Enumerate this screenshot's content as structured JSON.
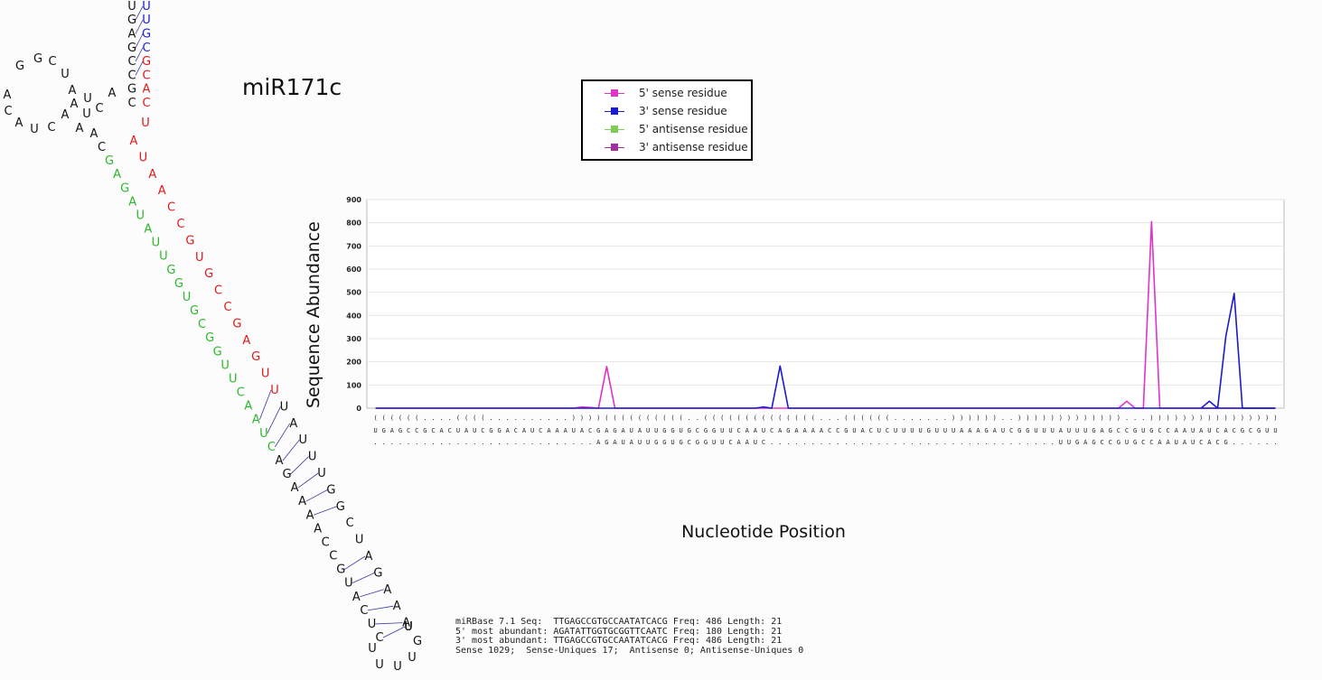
{
  "title": "miR171c",
  "legend": [
    {
      "label": "5' sense residue",
      "color": "#e033c8"
    },
    {
      "label": "3' sense residue",
      "color": "#1a1ad0"
    },
    {
      "label": "5' antisense residue",
      "color": "#7fcc5a"
    },
    {
      "label": "3' antisense residue",
      "color": "#a030a0"
    }
  ],
  "structure": {
    "colors": {
      "black": "#111111",
      "blue": "#1a1ad0",
      "red": "#e01818",
      "green": "#2ab82a",
      "bond": "#3a3aa0"
    },
    "segments": [
      {
        "seq": "UGAGCCGC",
        "color": "black"
      },
      {
        "seq": "ACUAUCGGACA",
        "color": "black"
      },
      {
        "seq": "UCAAAUAC",
        "color": "black"
      },
      {
        "seq": "GAGAUAUUGGUGCGGUUCAAUC",
        "color": "green"
      },
      {
        "seq": "AGAAAACCGUACUCUUUUGUUUAAAGAUCGGUUUAU",
        "color": "black"
      },
      {
        "seq": "UUGAGCCGUGCCAAUAUCACG",
        "color": "red"
      },
      {
        "seq": "CGUUUA",
        "color": "blue"
      }
    ]
  },
  "chart_data": {
    "type": "line",
    "xlabel": "Nucleotide Position",
    "ylabel": "Sequence Abundance",
    "ylim": [
      0,
      900
    ],
    "yticks": [
      0,
      100,
      200,
      300,
      400,
      500,
      600,
      700,
      800,
      900
    ],
    "grid": true,
    "n_positions": 110,
    "dot_bracket": "((((((....((((..........))))((((((((((..((((((((((((((...((((((.......))))))..)))))))))))))...))))))))))))))))))",
    "sequence": "UGAGCCGCACUAUCGGACAUCAAAUACGAGAUAUUGGUGCGGUUCAAUCAGAAAACCGUACUCUUUUGUUUAAAGAUCGGUUUAUUUGAGCCGUGCCAAUAUCACGCGUUUA",
    "mapped_reads": "...........................AGAUAUUGGUGCGGUUCAAUC...................................UUGAGCCGUGCCAAUAUCACG......",
    "series": [
      {
        "name": "5' sense residue",
        "color": "#e033c8",
        "points": [
          [
            0,
            0
          ],
          [
            24,
            0
          ],
          [
            25,
            5
          ],
          [
            26,
            3
          ],
          [
            27,
            0
          ],
          [
            28,
            180
          ],
          [
            29,
            0
          ],
          [
            90,
            0
          ],
          [
            91,
            30
          ],
          [
            92,
            0
          ],
          [
            93,
            0
          ],
          [
            94,
            805
          ],
          [
            95,
            0
          ],
          [
            109,
            0
          ]
        ]
      },
      {
        "name": "3' sense residue",
        "color": "#1a1ad0",
        "points": [
          [
            0,
            0
          ],
          [
            46,
            0
          ],
          [
            47,
            5
          ],
          [
            48,
            0
          ],
          [
            49,
            182
          ],
          [
            50,
            0
          ],
          [
            108,
            0
          ],
          [
            109,
            0
          ],
          [
            104,
            0
          ],
          [
            103,
            0
          ]
        ]
      },
      {
        "name": "3' sense residue tail",
        "color": "#1a1ad0",
        "points": [
          [
            100,
            0
          ],
          [
            101,
            30
          ],
          [
            102,
            0
          ],
          [
            103,
            310
          ],
          [
            104,
            495
          ],
          [
            105,
            0
          ],
          [
            109,
            0
          ]
        ]
      }
    ]
  },
  "stats": {
    "line1": "miRBase 7.1 Seq:  TTGAGCCGTGCCAATATCACG Freq: 486 Length: 21",
    "line2": "5' most abundant: AGATATTGGTGCGGTTCAATC Freq: 180 Length: 21",
    "line3": "3' most abundant: TTGAGCCGTGCCAATATCACG Freq: 486 Length: 21",
    "line4": "Sense 1029;  Sense-Uniques 17;  Antisense 0; Antisense-Uniques 0"
  }
}
